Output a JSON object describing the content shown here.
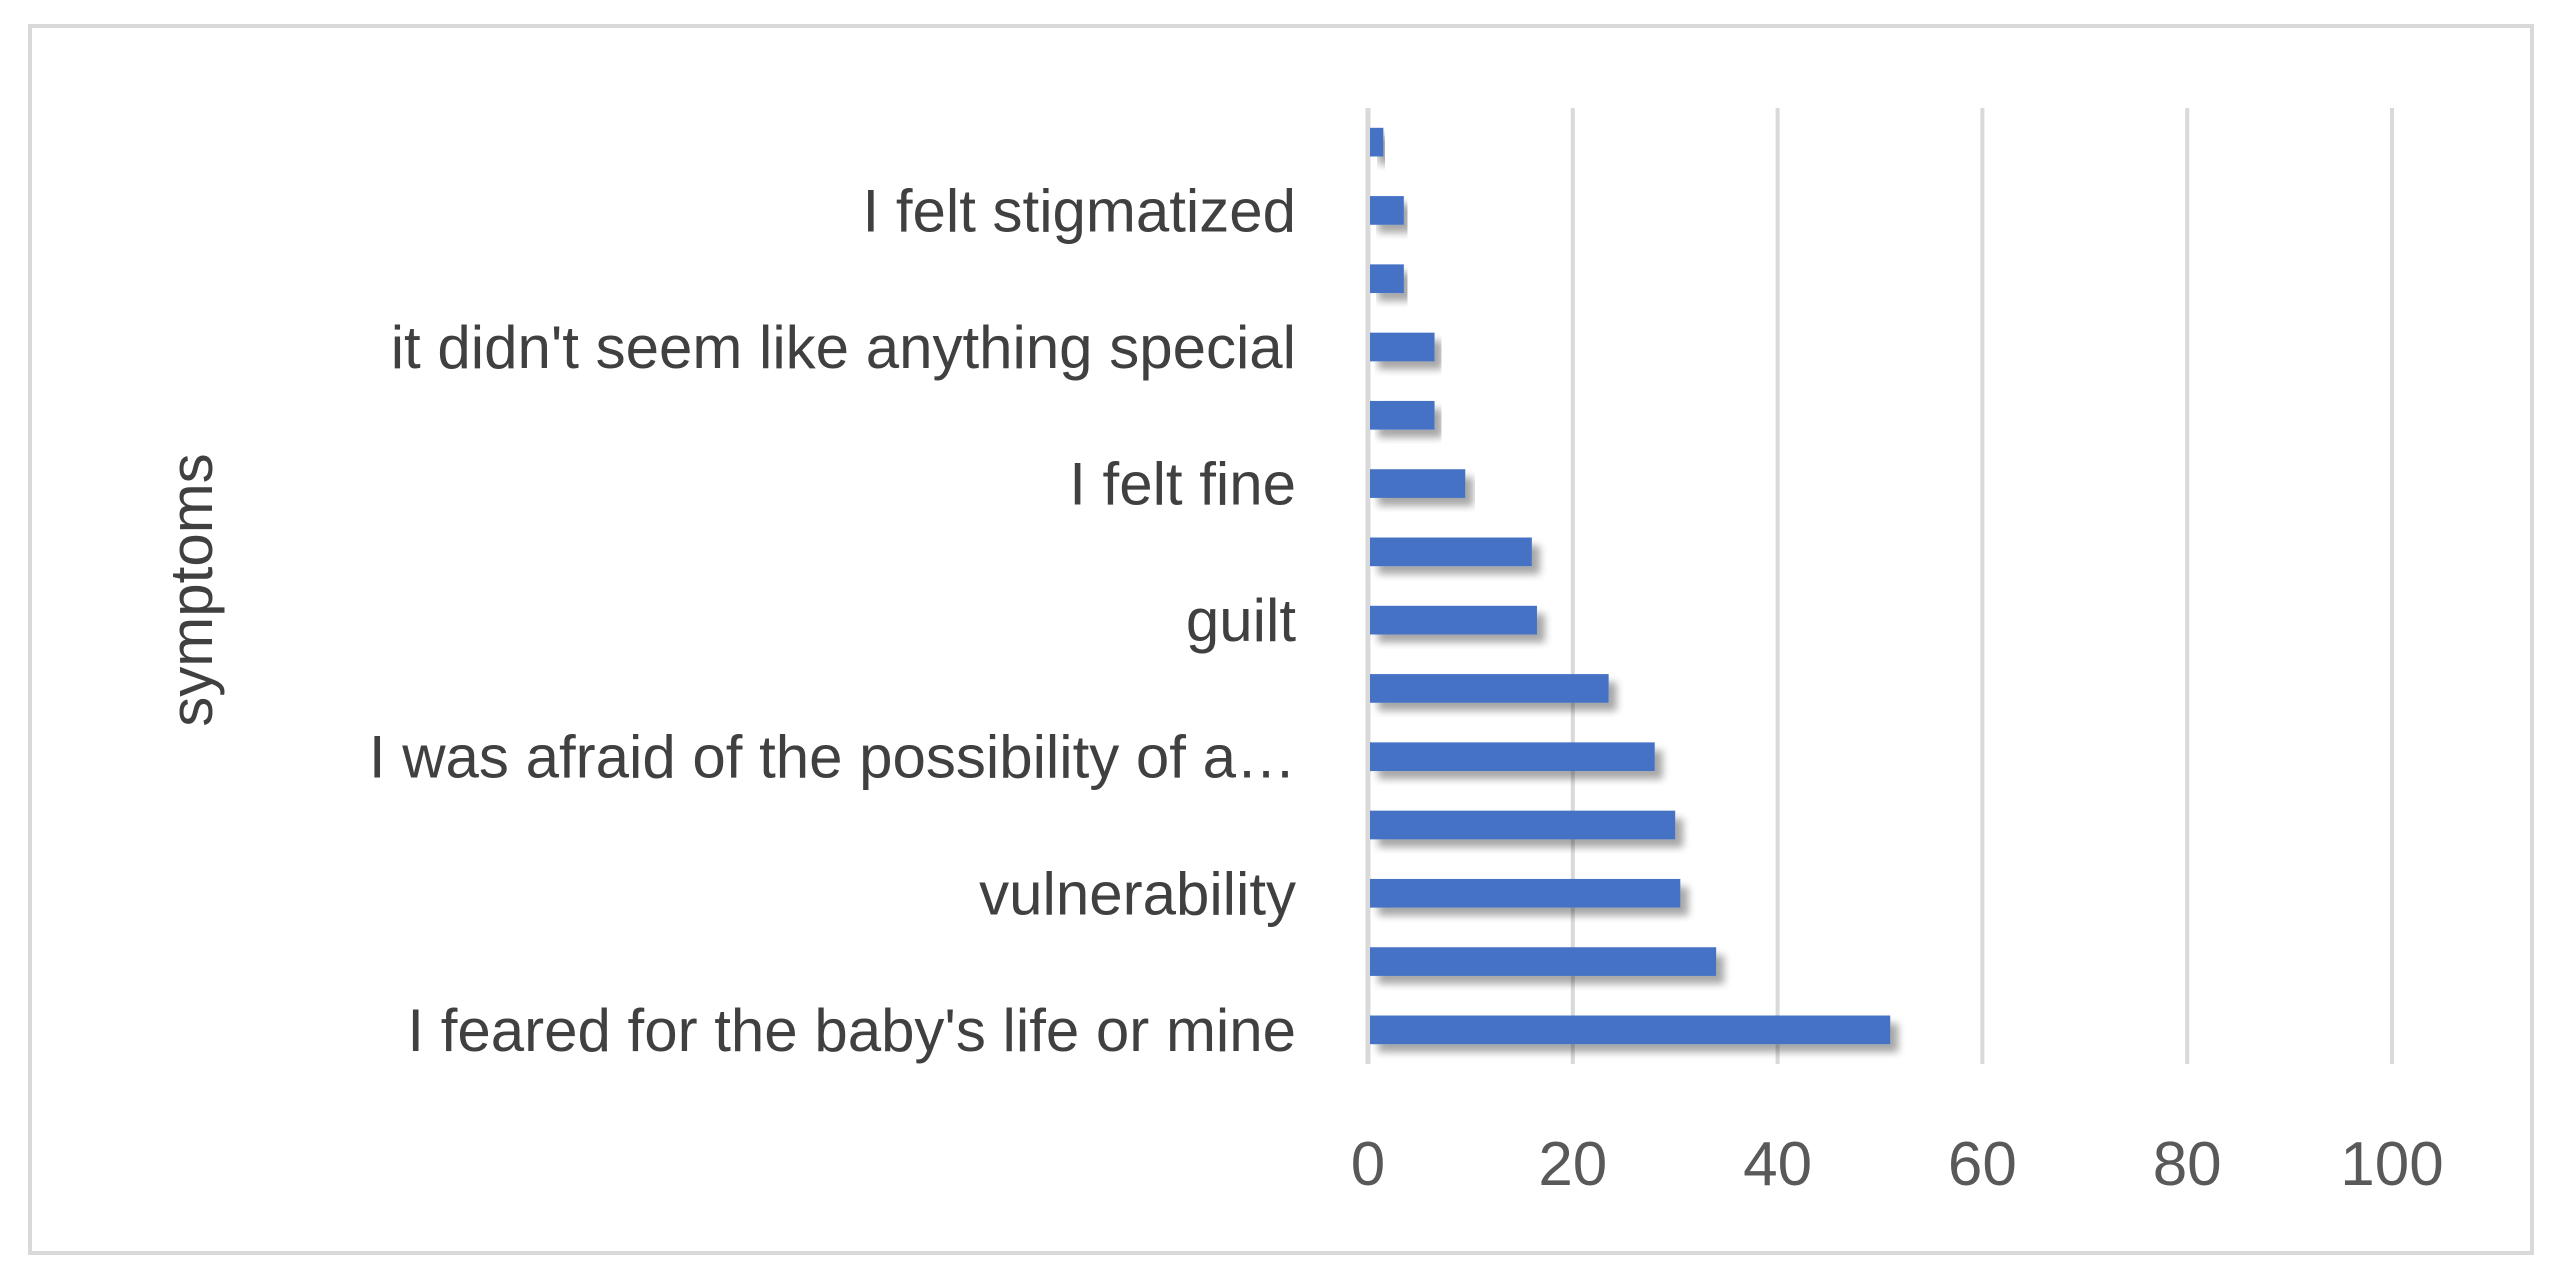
{
  "chart_data": {
    "type": "bar",
    "orientation": "horizontal",
    "categories": [
      "I feared for the baby's life or mine",
      "",
      "vulnerability",
      "",
      "I was afraid of the possibility of a…",
      "",
      "guilt",
      "",
      "I felt fine",
      "",
      "it didn't seem like anything special",
      "",
      "I felt stigmatized",
      ""
    ],
    "values": [
      51,
      34,
      30.5,
      30,
      28,
      23.5,
      16.5,
      16,
      9.5,
      6.5,
      6.5,
      3.5,
      3.5,
      1.5
    ],
    "xlim": [
      0,
      100
    ],
    "xticks": [
      "0",
      "20",
      "40",
      "60",
      "80",
      "100"
    ],
    "ylabel": "symptoms",
    "xlabel": "",
    "title": "",
    "grid": "vertical",
    "legend": "none",
    "bar_color": "#4472c4",
    "bar_shadow_color": "#bfbfbf",
    "gridline_color": "#d9d9d9",
    "text_color": "#595959"
  }
}
